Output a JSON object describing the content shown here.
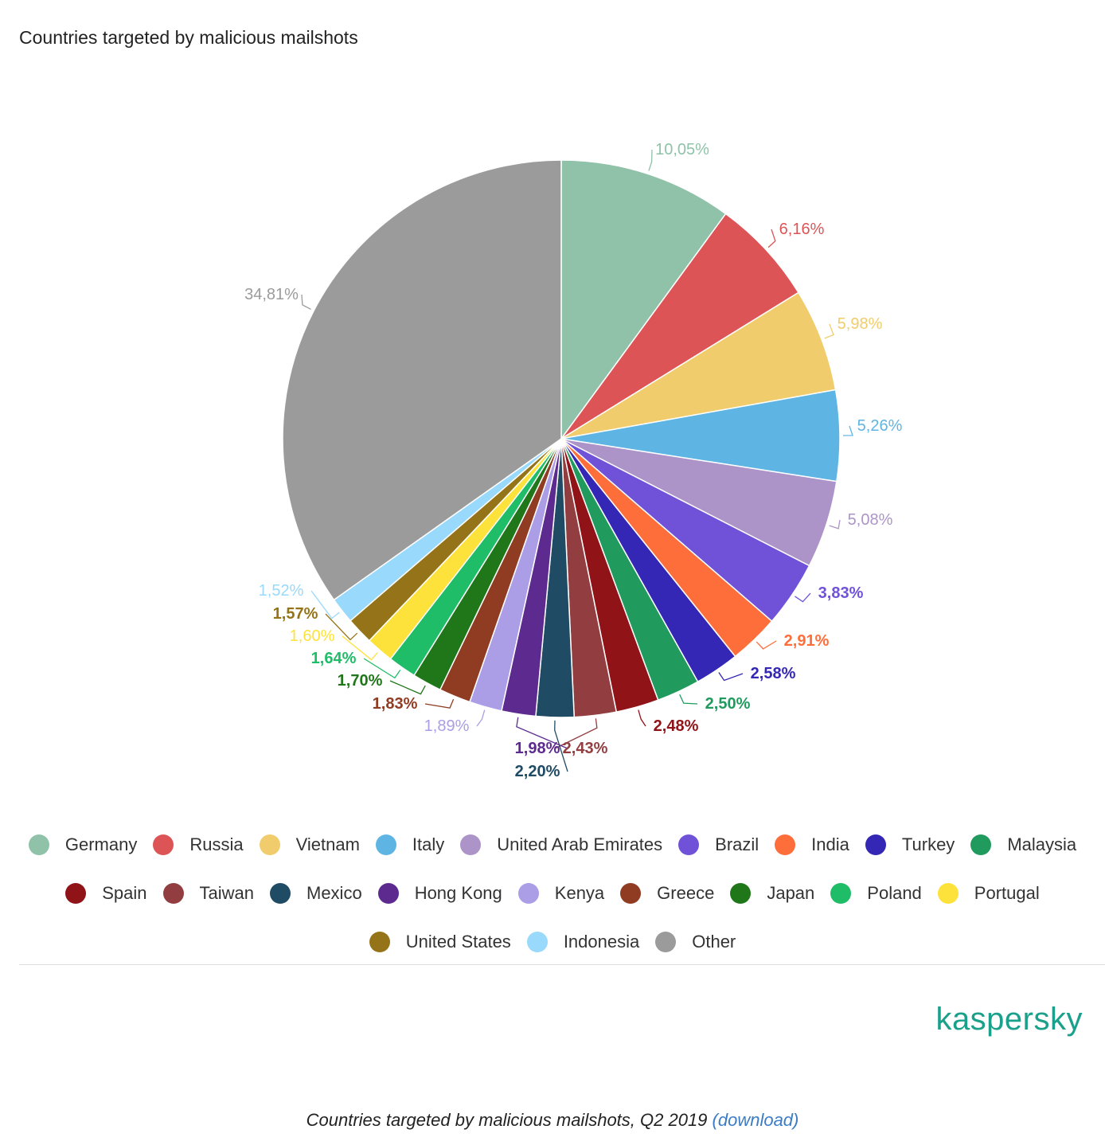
{
  "chart_data": {
    "type": "pie",
    "title": "Countries targeted by malicious mailshots",
    "categories": [
      "Germany",
      "Russia",
      "Vietnam",
      "Italy",
      "United Arab Emirates",
      "Brazil",
      "India",
      "Turkey",
      "Malaysia",
      "Spain",
      "Taiwan",
      "Mexico",
      "Hong Kong",
      "Kenya",
      "Greece",
      "Japan",
      "Poland",
      "Portugal",
      "United States",
      "Indonesia",
      "Other"
    ],
    "values": [
      10.05,
      6.16,
      5.98,
      5.26,
      5.08,
      3.83,
      2.91,
      2.58,
      2.5,
      2.48,
      2.43,
      2.2,
      1.98,
      1.89,
      1.83,
      1.7,
      1.64,
      1.6,
      1.57,
      1.52,
      34.81
    ],
    "labels": [
      "10,05%",
      "6,16%",
      "5,98%",
      "5,26%",
      "5,08%",
      "3,83%",
      "2,91%",
      "2,58%",
      "2,50%",
      "2,48%",
      "2,43%",
      "2,20%",
      "1,98%",
      "1,89%",
      "1,83%",
      "1,70%",
      "1,64%",
      "1,60%",
      "1,57%",
      "1,52%",
      "34,81%"
    ],
    "colors": [
      "#8fc2a8",
      "#dd5457",
      "#f0cc6c",
      "#5eb5e3",
      "#ac94c8",
      "#7052d9",
      "#fe6e3b",
      "#3427b5",
      "#209b5d",
      "#8f1317",
      "#923e40",
      "#204b65",
      "#5d2b8f",
      "#ac9ee6",
      "#8f3c22",
      "#20771a",
      "#20bd68",
      "#fde23c",
      "#957419",
      "#99d9fb",
      "#9b9b9b"
    ],
    "legend_position": "bottom"
  },
  "brand": "kaspersky",
  "caption": {
    "text": "Countries targeted by malicious mailshots, Q2 2019 ",
    "link": "(download)"
  }
}
